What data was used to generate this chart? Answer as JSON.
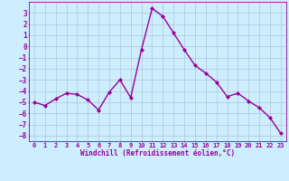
{
  "x": [
    0,
    1,
    2,
    3,
    4,
    5,
    6,
    7,
    8,
    9,
    10,
    11,
    12,
    13,
    14,
    15,
    16,
    17,
    18,
    19,
    20,
    21,
    22,
    23
  ],
  "y": [
    -5.0,
    -5.3,
    -4.7,
    -4.2,
    -4.3,
    -4.8,
    -5.7,
    -4.1,
    -3.0,
    -4.6,
    -0.3,
    3.4,
    2.7,
    1.2,
    -0.3,
    -1.7,
    -2.4,
    -3.2,
    -4.5,
    -4.2,
    -4.9,
    -5.5,
    -6.4,
    -7.8
  ],
  "line_color": "#990099",
  "marker": "D",
  "marker_size": 2.0,
  "bg_color": "#cceeff",
  "grid_color": "#aabbcc",
  "xlabel": "Windchill (Refroidissement éolien,°C)",
  "xlabel_color": "#990099",
  "xlim": [
    -0.5,
    23.5
  ],
  "ylim": [
    -8.5,
    4.0
  ],
  "yticks": [
    3,
    2,
    1,
    0,
    -1,
    -2,
    -3,
    -4,
    -5,
    -6,
    -7,
    -8
  ],
  "xticks": [
    0,
    1,
    2,
    3,
    4,
    5,
    6,
    7,
    8,
    9,
    10,
    11,
    12,
    13,
    14,
    15,
    16,
    17,
    18,
    19,
    20,
    21,
    22,
    23
  ],
  "linewidth": 1.0,
  "tick_fontsize": 5.0,
  "xlabel_fontsize": 5.5
}
